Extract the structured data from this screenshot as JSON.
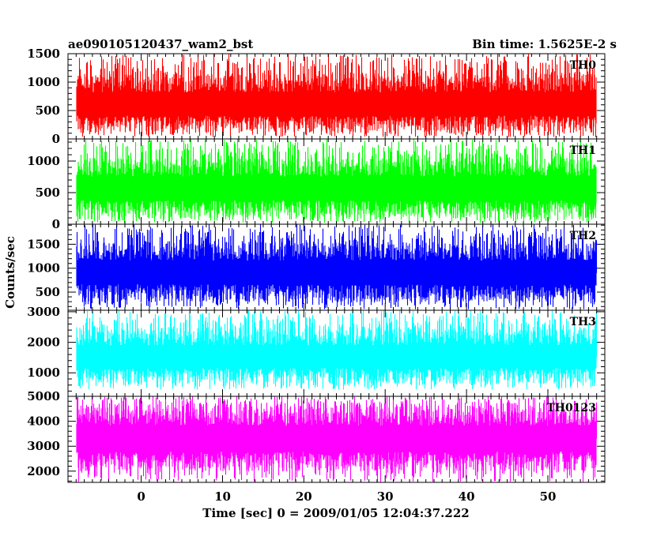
{
  "header": {
    "title": "ae090105120437_wam2_bst",
    "bin_time": "Bin time: 1.5625E-2 s"
  },
  "chart_data": {
    "type": "line",
    "ylabel": "Counts/sec",
    "xlabel": "Time [sec] 0 = 2009/01/05 12:04:37.222",
    "xlim": [
      -9,
      57
    ],
    "x_data_range": [
      -8,
      56
    ],
    "xticks": [
      0,
      10,
      20,
      30,
      40,
      50
    ],
    "xtick_labels": [
      "0",
      "10",
      "20",
      "30",
      "40",
      "50"
    ],
    "panels": [
      {
        "name": "TH0",
        "color": "#ff0000",
        "ylim": [
          0,
          1500
        ],
        "yticks": [
          0,
          500,
          1000,
          1500
        ],
        "ytick_labels": [
          "0",
          "500",
          "1000",
          "1500"
        ],
        "y_typical_range": [
          120,
          1150
        ],
        "y_mean": 600,
        "y_peak_range": [
          30,
          1500
        ]
      },
      {
        "name": "TH1",
        "color": "#00ff00",
        "ylim": [
          0,
          1350
        ],
        "yticks": [
          0,
          500,
          1000
        ],
        "ytick_labels": [
          "0",
          "500",
          "1000"
        ],
        "y_typical_range": [
          100,
          1050
        ],
        "y_mean": 560,
        "y_peak_range": [
          20,
          1350
        ]
      },
      {
        "name": "TH2",
        "color": "#0000ff",
        "ylim": [
          120,
          1920
        ],
        "yticks": [
          500,
          1000,
          1500
        ],
        "ytick_labels": [
          "500",
          "1000",
          "1500"
        ],
        "y_typical_range": [
          300,
          1550
        ],
        "y_mean": 900,
        "y_peak_range": [
          140,
          1920
        ]
      },
      {
        "name": "TH3",
        "color": "#00ffff",
        "ylim": [
          230,
          3050
        ],
        "yticks": [
          1000,
          2000,
          3000
        ],
        "ytick_labels": [
          "1000",
          "2000",
          "3000"
        ],
        "y_typical_range": [
          650,
          2500
        ],
        "y_mean": 1500,
        "y_peak_range": [
          450,
          3050
        ]
      },
      {
        "name": "TH0123",
        "color": "#ff00ff",
        "ylim": [
          1550,
          5000
        ],
        "yticks": [
          2000,
          3000,
          4000,
          5000
        ],
        "ytick_labels": [
          "2000",
          "3000",
          "4000",
          "5000"
        ],
        "y_typical_range": [
          2000,
          4600
        ],
        "y_mean": 3300,
        "y_peak_range": [
          1550,
          5000
        ]
      }
    ]
  }
}
